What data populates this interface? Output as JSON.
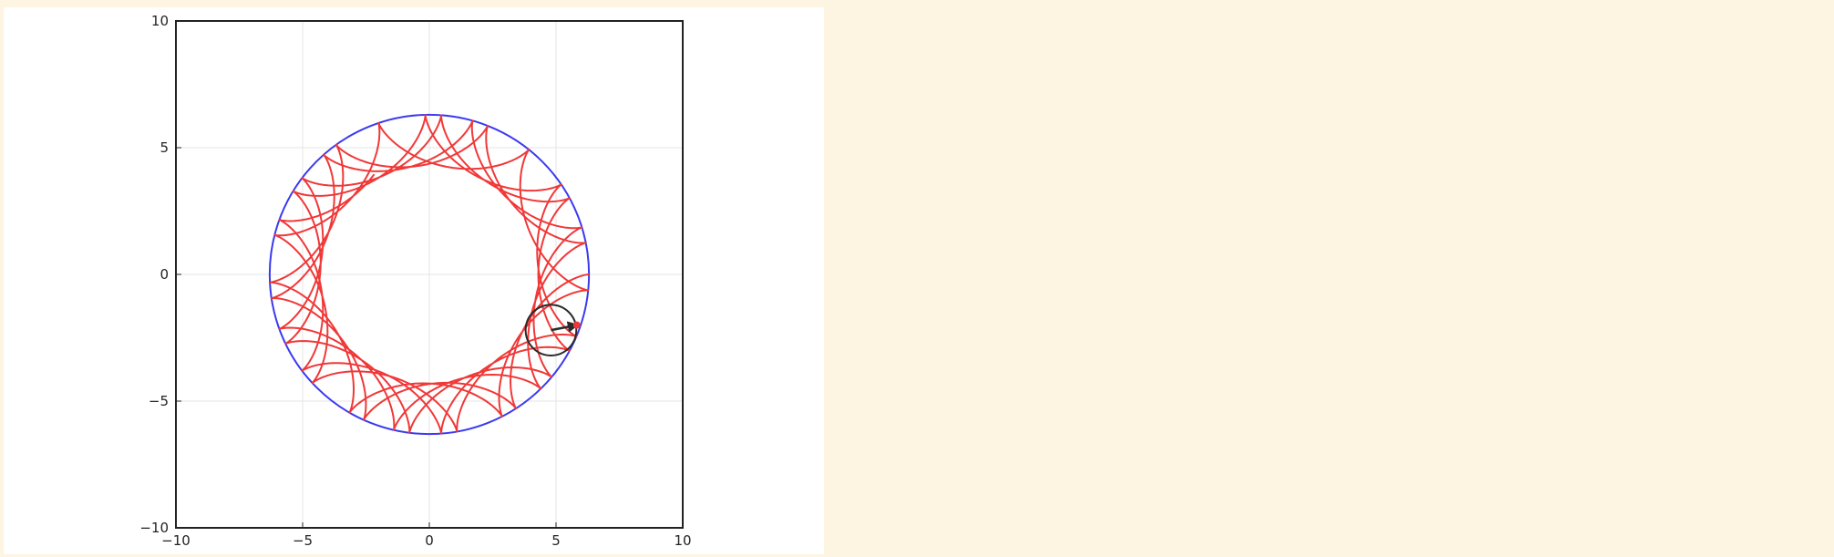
{
  "chart_data": {
    "type": "line",
    "title": "",
    "xlabel": "",
    "ylabel": "",
    "xlim": [
      -10,
      10
    ],
    "ylim": [
      -10,
      10
    ],
    "x_ticks": [
      -10,
      -5,
      0,
      5,
      10
    ],
    "y_ticks": [
      -10,
      -5,
      0,
      5,
      10
    ],
    "x_tick_labels": [
      "−10",
      "−5",
      "0",
      "5",
      "10"
    ],
    "y_tick_labels": [
      "−10",
      "−5",
      "0",
      "5",
      "10"
    ],
    "grid": true,
    "aspect": "equal",
    "fixed_circle": {
      "center": [
        0,
        0
      ],
      "radius": 6.3,
      "color": "#3a3af0"
    },
    "hypocycloid": {
      "outer_radius": 6.3,
      "rolling_radius": 1.0,
      "turns": 5.65,
      "color": "#f03838"
    },
    "rolling_circle": {
      "center": [
        4.8,
        -2.2
      ],
      "radius": 1.0,
      "color": "#2a2a2a"
    },
    "tracer": {
      "from": [
        4.8,
        -2.2
      ],
      "to": [
        5.82,
        -2.0
      ],
      "arrow_color": "#2a2a2a",
      "point_color": "#f03838"
    }
  }
}
